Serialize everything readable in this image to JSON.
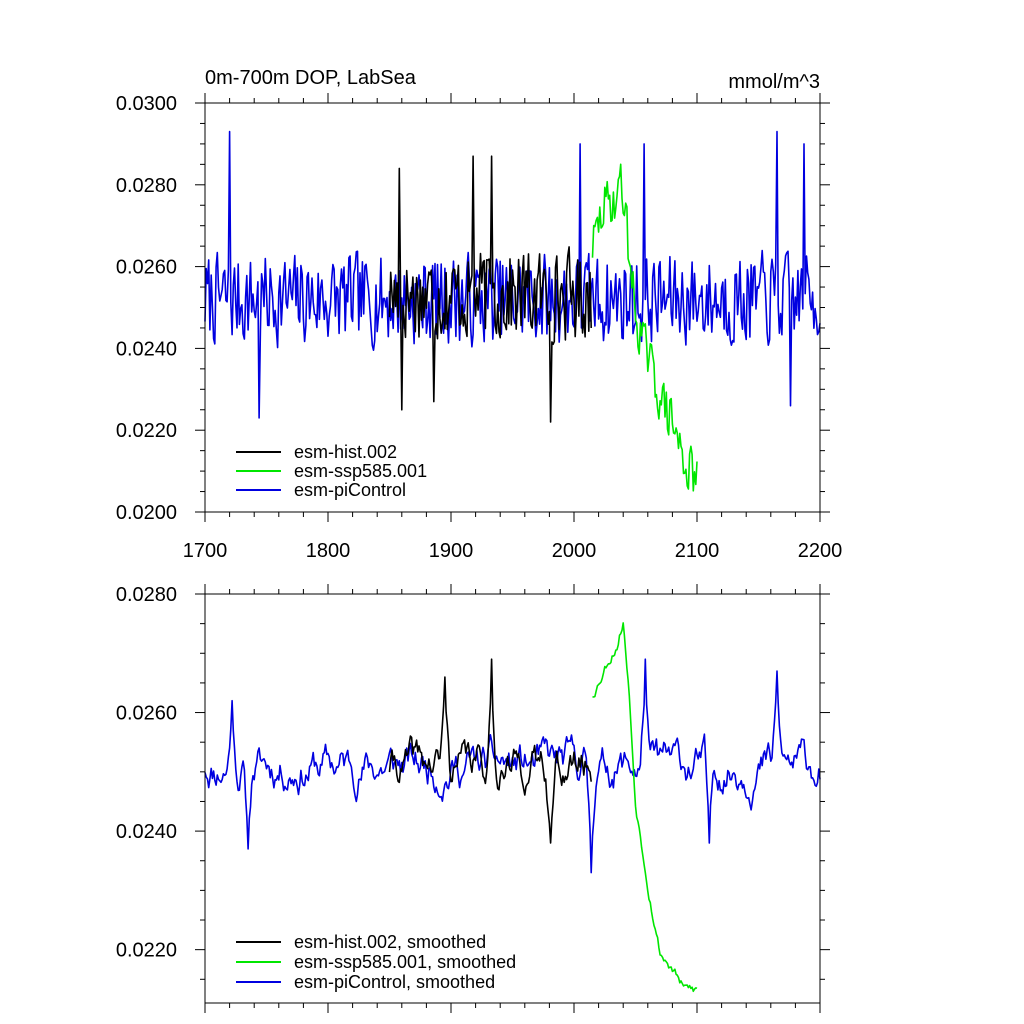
{
  "colors": {
    "hist": "#000000",
    "ssp": "#00e600",
    "picontrol": "#0000e0"
  },
  "chart_data": [
    {
      "type": "line",
      "title": "0m-700m DOP, LabSea",
      "units": "mmol/m^3",
      "xlabel": "",
      "ylabel": "",
      "xlim": [
        1700,
        2200
      ],
      "ylim": [
        0.02,
        0.03
      ],
      "xticks": [
        1700,
        1800,
        1900,
        2000,
        2100,
        2200
      ],
      "xtick_labels": [
        "1700",
        "1800",
        "1900",
        "2000",
        "2100",
        "2200"
      ],
      "yticks": [
        0.02,
        0.022,
        0.024,
        0.026,
        0.028,
        0.03
      ],
      "ytick_labels": [
        "0.0200",
        "0.0220",
        "0.0240",
        "0.0260",
        "0.0280",
        "0.0300"
      ],
      "legend_position": "bottom-left",
      "series": [
        {
          "name": "esm-hist.002",
          "color_key": "hist",
          "x_start": 1850,
          "x_end": 2014,
          "mean": 0.0253,
          "amp": 0.0013,
          "spikes": [
            [
              1858,
              0.0284
            ],
            [
              1860,
              0.0225
            ],
            [
              1886,
              0.0227
            ],
            [
              1918,
              0.0287
            ],
            [
              1933,
              0.0287
            ],
            [
              1981,
              0.0222
            ]
          ],
          "seed": 17
        },
        {
          "name": "esm-ssp585.001",
          "color_key": "ssp",
          "x_start": 2015,
          "x_end": 2100,
          "mean": 0.0265,
          "amp": 0.0007,
          "anchors": [
            [
              2015,
              0.0265
            ],
            [
              2025,
              0.0275
            ],
            [
              2040,
              0.0278
            ],
            [
              2050,
              0.0248
            ],
            [
              2060,
              0.0238
            ],
            [
              2070,
              0.0228
            ],
            [
              2080,
              0.0222
            ],
            [
              2090,
              0.0212
            ],
            [
              2100,
              0.0208
            ]
          ],
          "spikes": [
            [
              2038,
              0.0285
            ]
          ],
          "seed": 29
        },
        {
          "name": "esm-piControl",
          "color_key": "picontrol",
          "x_start": 1700,
          "x_end": 2200,
          "mean": 0.0252,
          "amp": 0.0013,
          "spikes": [
            [
              1720,
              0.0293
            ],
            [
              1744,
              0.0223
            ],
            [
              2005,
              0.029
            ],
            [
              2057,
              0.029
            ],
            [
              2165,
              0.0293
            ],
            [
              2187,
              0.029
            ],
            [
              2176,
              0.0226
            ]
          ],
          "seed": 7
        }
      ]
    },
    {
      "type": "line",
      "title": "",
      "units": "",
      "xlabel": "",
      "ylabel": "",
      "xlim": [
        1700,
        2200
      ],
      "ylim": [
        0.0211,
        0.028
      ],
      "xticks": [
        1700,
        1800,
        1900,
        2000,
        2100,
        2200
      ],
      "xtick_labels": [],
      "yticks": [
        0.022,
        0.024,
        0.026,
        0.028
      ],
      "ytick_labels": [
        "0.0220",
        "0.0240",
        "0.0260",
        "0.0280"
      ],
      "legend_position": "bottom-left",
      "series": [
        {
          "name": "esm-hist.002, smoothed",
          "color_key": "hist",
          "x_start": 1850,
          "x_end": 2014,
          "mean": 0.0251,
          "amp": 0.0006,
          "spikes": [
            [
              1895,
              0.0266
            ],
            [
              1933,
              0.0269
            ],
            [
              1981,
              0.0238
            ]
          ],
          "seed": 41
        },
        {
          "name": "esm-ssp585.001, smoothed",
          "color_key": "ssp",
          "x_start": 2015,
          "x_end": 2100,
          "mean": 0.0265,
          "amp": 0.0002,
          "anchors": [
            [
              2015,
              0.0263
            ],
            [
              2025,
              0.0268
            ],
            [
              2035,
              0.0272
            ],
            [
              2040,
              0.0276
            ],
            [
              2045,
              0.0263
            ],
            [
              2050,
              0.0245
            ],
            [
              2060,
              0.0232
            ],
            [
              2070,
              0.022
            ],
            [
              2080,
              0.0217
            ],
            [
              2090,
              0.0213
            ],
            [
              2100,
              0.0213
            ]
          ],
          "spikes": [],
          "seed": 53
        },
        {
          "name": "esm-piControl, smoothed",
          "color_key": "picontrol",
          "x_start": 1700,
          "x_end": 2200,
          "mean": 0.0251,
          "amp": 0.0006,
          "spikes": [
            [
              1722,
              0.0262
            ],
            [
              1735,
              0.0237
            ],
            [
              2014,
              0.0233
            ],
            [
              2058,
              0.0269
            ],
            [
              2165,
              0.0267
            ],
            [
              2110,
              0.0238
            ]
          ],
          "seed": 11
        }
      ]
    }
  ]
}
